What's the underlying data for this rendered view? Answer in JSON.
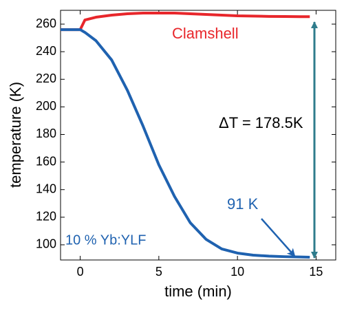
{
  "chart_data": {
    "type": "line",
    "x_label": "time (min)",
    "y_label": "temperature (K)",
    "x": [
      -1.25,
      0,
      0.3,
      1,
      2,
      3,
      4,
      5,
      6,
      7,
      8,
      9,
      10,
      11,
      12,
      13,
      14,
      14.6
    ],
    "series": [
      {
        "name": "Clamshell",
        "color": "#e8262b",
        "values": [
          256,
          256,
          263,
          265,
          266.5,
          267.5,
          268,
          268,
          268,
          267.5,
          267,
          266.5,
          266,
          265.8,
          265.6,
          265.5,
          265.4,
          265.4
        ]
      },
      {
        "name": "10 % Yb:YLF",
        "color": "#1f62b0",
        "values": [
          256,
          256,
          254,
          248,
          234,
          212,
          186,
          158,
          135,
          116,
          104,
          97,
          94,
          92.5,
          91.8,
          91.4,
          91.2,
          91
        ]
      }
    ],
    "annotations": [
      "ΔT = 178.5K",
      "91 K"
    ],
    "xlim": [
      -1.25,
      16.25
    ],
    "ylim": [
      89,
      270
    ],
    "xticks": [
      0,
      5,
      10,
      15
    ],
    "yticks": [
      100,
      120,
      140,
      160,
      180,
      200,
      220,
      240,
      260
    ]
  }
}
